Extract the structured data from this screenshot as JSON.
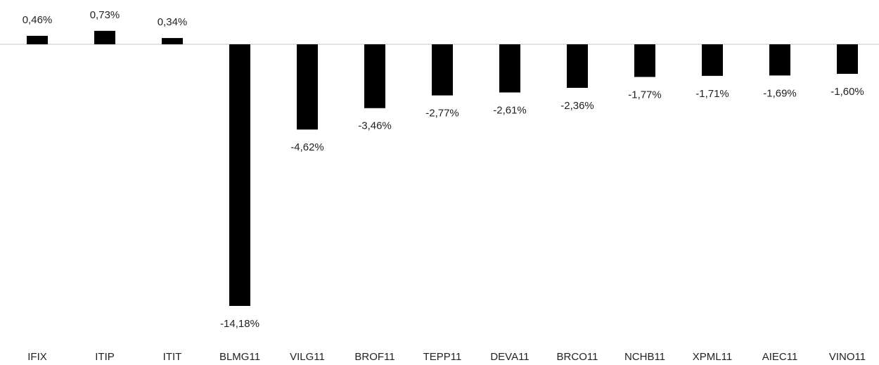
{
  "chart_data": {
    "type": "bar",
    "categories": [
      "IFIX",
      "ITIP",
      "ITIT",
      "BLMG11",
      "VILG11",
      "BROF11",
      "TEPP11",
      "DEVA11",
      "BRCO11",
      "NCHB11",
      "XPML11",
      "AIEC11",
      "VINO11"
    ],
    "values": [
      0.46,
      0.73,
      0.34,
      -14.18,
      -4.62,
      -3.46,
      -2.77,
      -2.61,
      -2.36,
      -1.77,
      -1.71,
      -1.69,
      -1.6
    ],
    "value_labels": [
      "0,46%",
      "0,73%",
      "0,34%",
      "-14,18%",
      "-4,62%",
      "-3,46%",
      "-2,77%",
      "-2,61%",
      "-2,36%",
      "-1,77%",
      "-1,71%",
      "-1,69%",
      "-1,60%"
    ],
    "color": "#000000"
  }
}
